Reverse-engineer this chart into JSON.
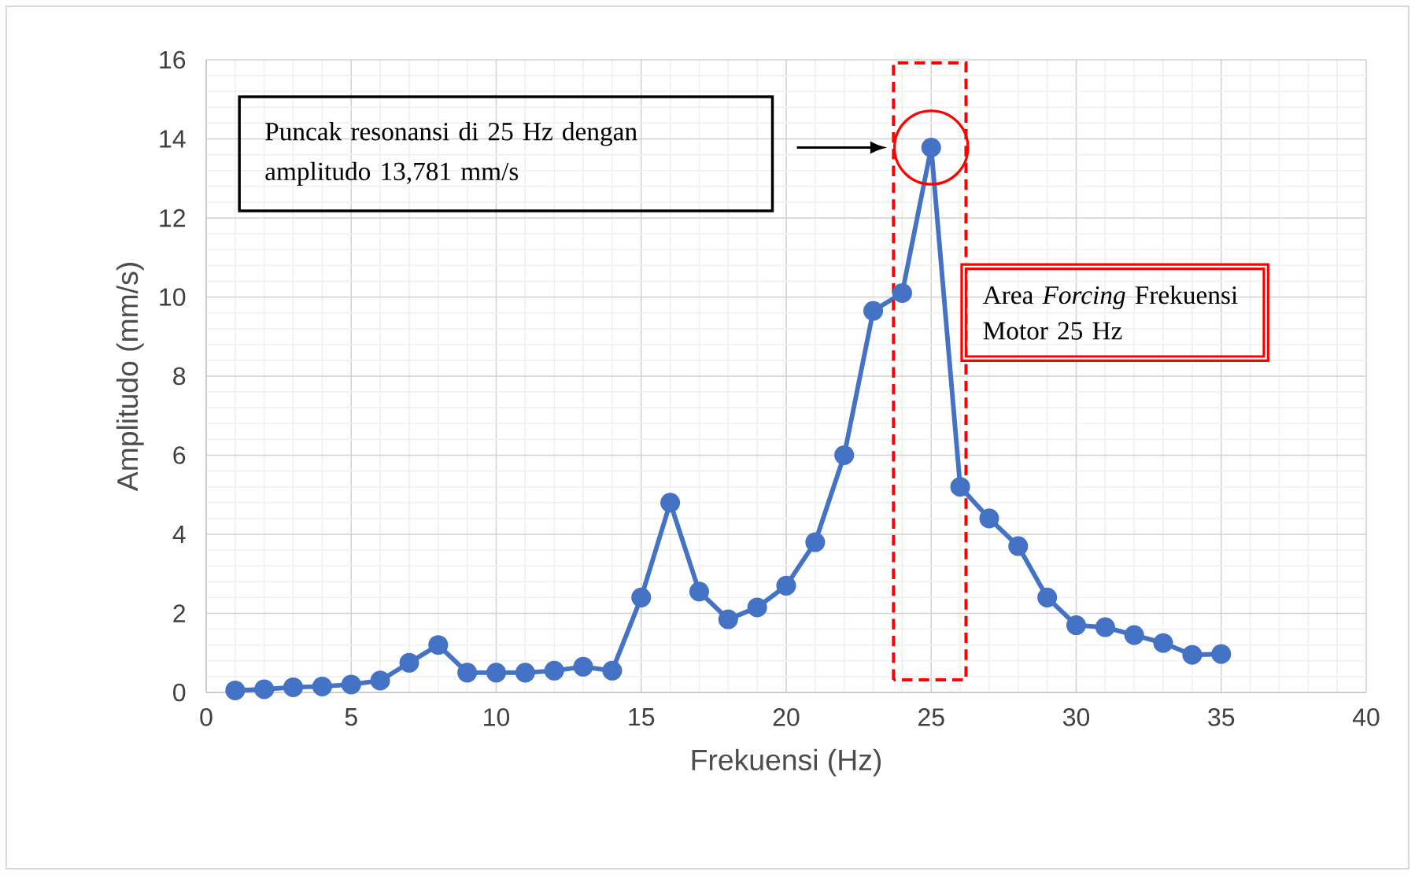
{
  "chart_data": {
    "type": "line",
    "xlabel": "Frekuensi (Hz)",
    "ylabel": "Amplitudo (mm/s)",
    "x": [
      1,
      2,
      3,
      4,
      5,
      6,
      7,
      8,
      9,
      10,
      11,
      12,
      13,
      14,
      15,
      16,
      17,
      18,
      19,
      20,
      21,
      22,
      23,
      24,
      25,
      26,
      27,
      28,
      29,
      30,
      31,
      32,
      33,
      34,
      35
    ],
    "series": [
      {
        "color": "#4472c4",
        "values": [
          0.05,
          0.08,
          0.13,
          0.15,
          0.2,
          0.3,
          0.75,
          1.2,
          0.5,
          0.5,
          0.5,
          0.55,
          0.65,
          0.55,
          2.4,
          4.8,
          2.55,
          1.85,
          2.15,
          2.7,
          3.8,
          6.0,
          9.65,
          10.1,
          13.781,
          5.2,
          4.4,
          3.7,
          2.4,
          1.7,
          1.65,
          1.45,
          1.25,
          0.95,
          0.97
        ]
      }
    ],
    "xlim": [
      0,
      40
    ],
    "xticks": [
      0,
      5,
      10,
      15,
      20,
      25,
      30,
      35,
      40
    ],
    "ylim": [
      0,
      16
    ],
    "yticks": [
      0,
      2,
      4,
      6,
      8,
      10,
      12,
      14,
      16
    ],
    "grid": true,
    "marker": "circle",
    "line_style": "solid",
    "annotations": [
      "Puncak resonansi di 25 Hz dengan amplitudo 13,781 mm/s",
      "Area *Forcing* Frekuensi Motor 25 Hz"
    ]
  }
}
